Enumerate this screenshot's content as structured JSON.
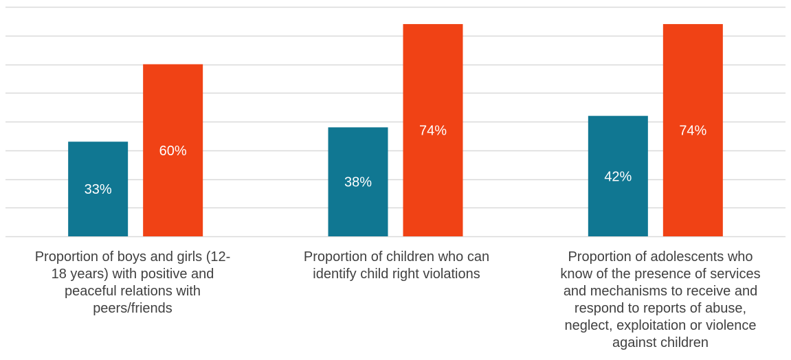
{
  "chart_data": {
    "type": "bar",
    "categories": [
      "Proportion of boys and girls (12-\n18 years) with positive and\npeaceful relations with\npeers/friends",
      "Proportion of children who can\nidentify child right violations",
      "Proportion of adolescents who\nknow of the presence of services\nand mechanisms to receive and\nrespond to reports of abuse,\nneglect, exploitation or violence\nagainst children"
    ],
    "series": [
      {
        "values": [
          33,
          38,
          42
        ],
        "labels": [
          "33%",
          "38%",
          "42%"
        ],
        "color": "#107792"
      },
      {
        "values": [
          60,
          74,
          74
        ],
        "labels": [
          "60%",
          "74%",
          "74%"
        ],
        "color": "#F04215"
      }
    ],
    "ylim": [
      0,
      80
    ],
    "gridlines": true,
    "gridline_count": 9,
    "legend": "none",
    "title": "",
    "xlabel": "",
    "ylabel": ""
  }
}
